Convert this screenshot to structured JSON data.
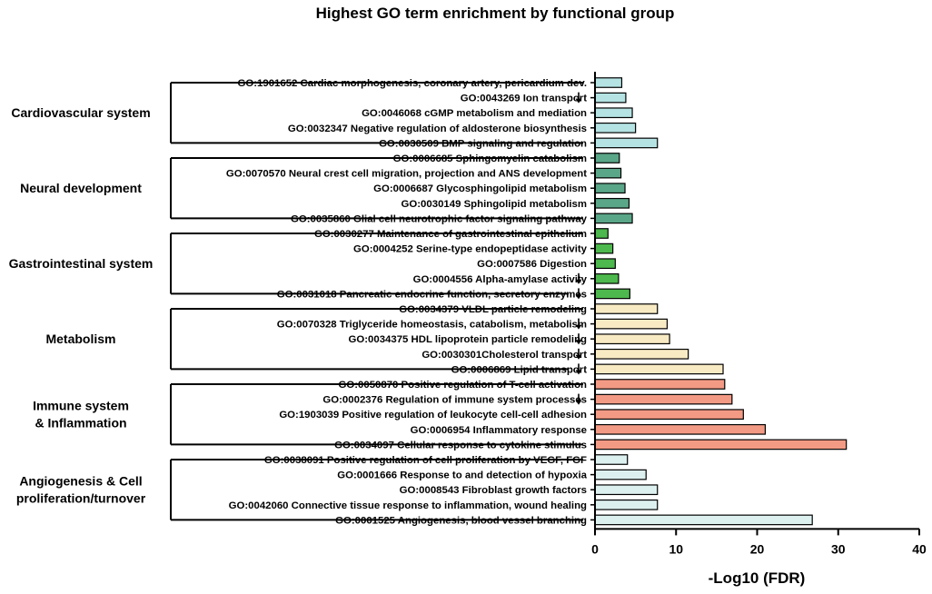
{
  "chart_data": {
    "type": "bar",
    "orientation": "horizontal",
    "title": "Highest GO term enrichment by functional group",
    "xlabel": "-Log10 (FDR)",
    "ylabel": "",
    "xlim": [
      0,
      40
    ],
    "xticks": [
      0,
      10,
      20,
      30,
      40
    ],
    "grid": false,
    "legend": "none",
    "groups": [
      {
        "name": "Cardiovascular system",
        "color": "#b5e3e3",
        "terms": [
          {
            "label": "GO:1901652 Cardiac morphogenesis, coronary artery, pericardium dev.",
            "value": 3.3,
            "down_arrow": false
          },
          {
            "label": "GO:0043269 Ion transport",
            "value": 3.8,
            "down_arrow": true
          },
          {
            "label": "GO:0046068 cGMP metabolism and mediation",
            "value": 4.6,
            "down_arrow": false
          },
          {
            "label": "GO:0032347 Negative regulation of aldosterone biosynthesis",
            "value": 5.0,
            "down_arrow": false
          },
          {
            "label": "GO:0030509 BMP signaling and regulation",
            "value": 7.7,
            "down_arrow": false
          }
        ]
      },
      {
        "name": "Neural development",
        "color": "#5aa688",
        "terms": [
          {
            "label": "GO:0006685 Sphingomyelin catabolism",
            "value": 3.0,
            "down_arrow": false
          },
          {
            "label": "GO:0070570 Neural crest cell migration, projection and ANS development",
            "value": 3.2,
            "down_arrow": false
          },
          {
            "label": "GO:0006687 Glycosphingolipid metabolism",
            "value": 3.7,
            "down_arrow": false
          },
          {
            "label": "GO:0030149 Sphingolipid metabolism",
            "value": 4.2,
            "down_arrow": false
          },
          {
            "label": "GO:0035860 Glial cell neurotrophic factor signaling pathway",
            "value": 4.6,
            "down_arrow": false
          }
        ]
      },
      {
        "name": "Gastrointestinal system",
        "color": "#4db84d",
        "terms": [
          {
            "label": "GO:0030277 Maintenance of gastrointestinal epithelium",
            "value": 1.6,
            "down_arrow": false
          },
          {
            "label": "GO:0004252 Serine-type endopeptidase activity",
            "value": 2.2,
            "down_arrow": false
          },
          {
            "label": "GO:0007586 Digestion",
            "value": 2.5,
            "down_arrow": false
          },
          {
            "label": "GO:0004556 Alpha-amylase activity",
            "value": 2.9,
            "down_arrow": true
          },
          {
            "label": "GO:0031018 Pancreatic endocrine function, secretory enzymes",
            "value": 4.3,
            "down_arrow": true
          }
        ]
      },
      {
        "name": "Metabolism",
        "color": "#f8ebc4",
        "terms": [
          {
            "label": "GO:0034379 VLDL particle remodeling",
            "value": 7.7,
            "down_arrow": false
          },
          {
            "label": "GO:0070328 Triglyceride homeostasis, catabolism, metabolism",
            "value": 8.9,
            "down_arrow": true
          },
          {
            "label": "GO:0034375 HDL lipoprotein particle remodeling",
            "value": 9.2,
            "down_arrow": true
          },
          {
            "label": "GO:0030301Cholesterol transport",
            "value": 11.5,
            "down_arrow": true
          },
          {
            "label": "GO:0006869 Lipid transport",
            "value": 15.8,
            "down_arrow": true
          }
        ]
      },
      {
        "name": "Immune system & Inflammation",
        "name_lines": [
          "Immune system",
          "& Inflammation"
        ],
        "color": "#f39a85",
        "terms": [
          {
            "label": "GO:0050870 Positive regulation of T-cell activation",
            "value": 16.0,
            "down_arrow": false
          },
          {
            "label": "GO:0002376 Regulation of immune system processes",
            "value": 16.9,
            "down_arrow": true
          },
          {
            "label": "GO:1903039 Positive regulation of leukocyte cell-cell adhesion",
            "value": 18.3,
            "down_arrow": false
          },
          {
            "label": "GO:0006954 Inflammatory response",
            "value": 21.0,
            "down_arrow": false
          },
          {
            "label": "GO:0034097 Cellular response to cytokine stimulus",
            "value": 31.0,
            "down_arrow": false
          }
        ]
      },
      {
        "name": "Angiogenesis & Cell proliferation/turnover",
        "name_lines": [
          "Angiogenesis & Cell",
          "proliferation/turnover"
        ],
        "color": "#ddf0f0",
        "terms": [
          {
            "label": "GO:0038091 Positive regulation of cell proliferation by VEGF, FGF",
            "value": 4.0,
            "down_arrow": false
          },
          {
            "label": "GO:0001666 Response to and detection of hypoxia",
            "value": 6.3,
            "down_arrow": false
          },
          {
            "label": "GO:0008543 Fibroblast growth factors",
            "value": 7.7,
            "down_arrow": false
          },
          {
            "label": "GO:0042060 Connective tissue response to inflammation, wound healing",
            "value": 7.7,
            "down_arrow": false
          },
          {
            "label": "GO:0001525 Angiogenesis, blood vessel branching",
            "value": 26.8,
            "down_arrow": false
          }
        ]
      }
    ]
  }
}
